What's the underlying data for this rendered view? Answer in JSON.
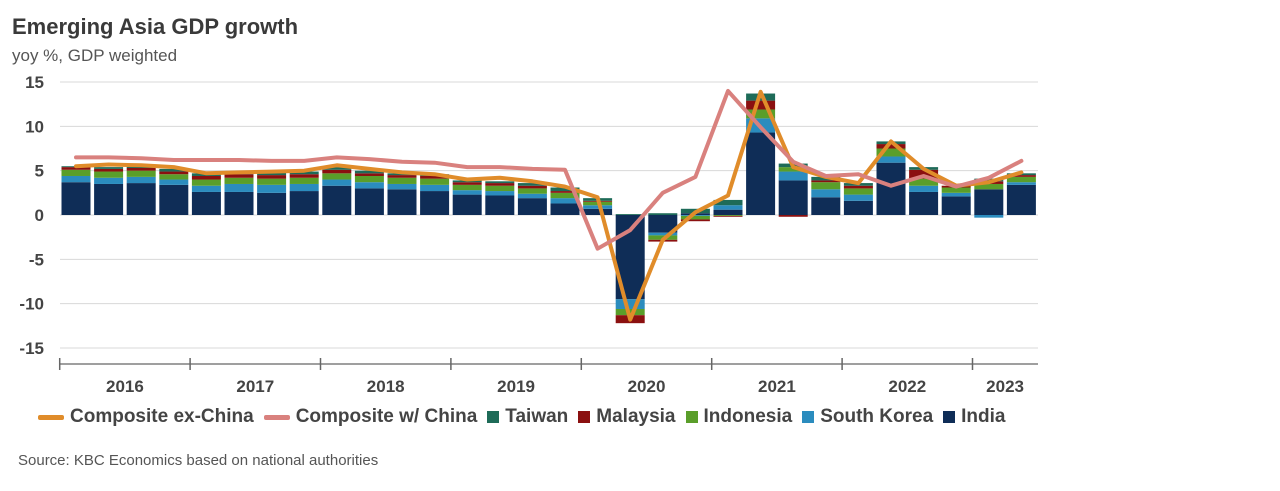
{
  "title": "Emerging Asia GDP growth",
  "subtitle": "yoy %, GDP weighted",
  "source": "Source: KBC Economics based on national authorities",
  "chart_data": {
    "type": "bar",
    "stacked": true,
    "ylim": [
      -15,
      15
    ],
    "yticks": [
      15,
      10,
      5,
      0,
      -5,
      -10,
      -15
    ],
    "ytick_labels": [
      "15",
      "10",
      "5",
      "0",
      "-5",
      "-10",
      "-15"
    ],
    "x_groups": [
      "2016",
      "2017",
      "2018",
      "2019",
      "2020",
      "2021",
      "2022",
      "2023"
    ],
    "x_group_quarters": [
      4,
      4,
      4,
      4,
      4,
      4,
      4,
      2
    ],
    "legend_position": "bottom",
    "grid": true,
    "bar_series": [
      {
        "name": "India",
        "color": "#0f2d57",
        "values": [
          3.7,
          3.5,
          3.6,
          3.4,
          2.6,
          2.6,
          2.5,
          2.7,
          3.3,
          3.0,
          2.9,
          2.7,
          2.3,
          2.2,
          1.9,
          1.3,
          0.7,
          -9.5,
          -2.0,
          0.2,
          0.6,
          9.3,
          3.9,
          2.0,
          1.6,
          5.9,
          2.6,
          2.1,
          2.9,
          3.4
        ]
      },
      {
        "name": "South Korea",
        "color": "#2b8cbe",
        "values": [
          0.7,
          0.7,
          0.7,
          0.6,
          0.7,
          0.9,
          0.9,
          0.8,
          0.7,
          0.7,
          0.6,
          0.7,
          0.5,
          0.5,
          0.5,
          0.6,
          0.4,
          -1.1,
          -0.3,
          -0.1,
          0.5,
          1.6,
          1.0,
          0.9,
          0.7,
          0.7,
          0.7,
          0.4,
          -0.3,
          0.3
        ]
      },
      {
        "name": "Indonesia",
        "color": "#5a9e2a",
        "values": [
          0.7,
          0.7,
          0.7,
          0.6,
          0.7,
          0.7,
          0.7,
          0.7,
          0.7,
          0.7,
          0.7,
          0.7,
          0.6,
          0.6,
          0.6,
          0.6,
          0.4,
          -0.7,
          -0.5,
          -0.4,
          -0.1,
          1.0,
          0.5,
          0.8,
          0.7,
          0.9,
          0.8,
          0.6,
          0.6,
          0.6
        ]
      },
      {
        "name": "Malaysia",
        "color": "#8b1010",
        "values": [
          0.3,
          0.3,
          0.3,
          0.3,
          0.4,
          0.4,
          0.4,
          0.4,
          0.4,
          0.3,
          0.3,
          0.3,
          0.3,
          0.3,
          0.3,
          0.2,
          0.1,
          -0.9,
          -0.2,
          -0.2,
          -0.1,
          1.0,
          -0.2,
          0.2,
          0.3,
          0.5,
          1.0,
          0.2,
          0.3,
          0.2
        ]
      },
      {
        "name": "Taiwan",
        "color": "#1e6b58",
        "values": [
          0.1,
          0.2,
          0.2,
          0.3,
          0.3,
          0.3,
          0.4,
          0.3,
          0.3,
          0.3,
          0.2,
          0.2,
          0.2,
          0.2,
          0.3,
          0.4,
          0.3,
          0.1,
          0.2,
          0.5,
          0.6,
          0.8,
          0.4,
          0.4,
          0.3,
          0.3,
          0.3,
          0.0,
          0.3,
          0.2
        ]
      }
    ],
    "line_series": [
      {
        "name": "Composite ex-China",
        "color": "#e08c2a",
        "values": [
          5.5,
          5.7,
          5.6,
          5.4,
          4.7,
          4.8,
          4.9,
          5.0,
          5.6,
          5.2,
          4.8,
          4.6,
          4.0,
          4.2,
          3.8,
          3.2,
          2.0,
          -11.8,
          -2.8,
          0.3,
          2.2,
          13.9,
          5.4,
          4.3,
          3.6,
          8.3,
          5.2,
          3.3,
          3.7,
          4.8
        ]
      },
      {
        "name": "Composite w/ China",
        "color": "#d9817e",
        "values": [
          6.5,
          6.5,
          6.4,
          6.2,
          6.2,
          6.2,
          6.1,
          6.1,
          6.5,
          6.3,
          6.0,
          5.9,
          5.4,
          5.4,
          5.2,
          5.1,
          -3.8,
          -1.7,
          2.5,
          4.3,
          14.0,
          9.9,
          6.0,
          4.4,
          4.6,
          3.3,
          4.4,
          3.2,
          4.2,
          6.1
        ]
      }
    ],
    "legend_order": [
      "Composite ex-China",
      "Composite w/ China",
      "Taiwan",
      "Malaysia",
      "Indonesia",
      "South Korea",
      "India"
    ]
  }
}
